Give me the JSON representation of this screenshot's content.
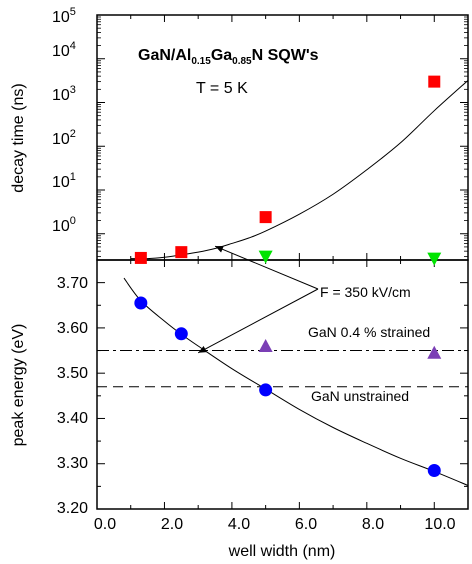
{
  "chart_data": [
    {
      "type": "scatter",
      "panel": "top",
      "ylabel": "decay time (ns)",
      "yscale": "log",
      "xlim": [
        0,
        11
      ],
      "ylim_log10": [
        -0.6,
        5
      ],
      "y_tick_mantissa": "10",
      "y_tick_exponents": [
        "0",
        "1",
        "2",
        "3",
        "4",
        "5"
      ],
      "title_parts": {
        "a": "GaN/Al",
        "b": "0.15",
        "c": "Ga",
        "d": "0.85",
        "e": "N SQW's"
      },
      "temperature_label": "T = 5 K",
      "series": [
        {
          "marker": "square",
          "color": "#ff0000",
          "x": [
            1.3,
            2.5,
            5.0,
            10.0
          ],
          "y": [
            0.28,
            0.38,
            2.4,
            3000
          ]
        },
        {
          "marker": "triangle-down",
          "color": "#00e400",
          "x": [
            5.0,
            10.0
          ],
          "y": [
            0.3,
            0.27
          ]
        }
      ],
      "fit_curve": {
        "x": [
          1.0,
          1.5,
          2.0,
          2.5,
          3.0,
          3.5,
          4.0,
          4.5,
          5.0,
          6.0,
          7.0,
          8.0,
          9.0,
          10.0,
          11.0
        ],
        "y": [
          0.27,
          0.27,
          0.29,
          0.33,
          0.38,
          0.46,
          0.6,
          0.8,
          1.15,
          2.8,
          8,
          29,
          120,
          650,
          3200
        ]
      }
    },
    {
      "type": "scatter",
      "panel": "bottom",
      "xlabel": "well width (nm)",
      "ylabel": "peak energy (eV)",
      "xlim": [
        0,
        11
      ],
      "ylim": [
        3.2,
        3.75
      ],
      "x_ticks": [
        "0.0",
        "2.0",
        "4.0",
        "6.0",
        "8.0",
        "10.0"
      ],
      "y_ticks": [
        "3.20",
        "3.30",
        "3.40",
        "3.50",
        "3.60",
        "3.70"
      ],
      "series": [
        {
          "marker": "circle",
          "color": "#0000ff",
          "x": [
            1.3,
            2.5,
            5.0,
            10.0
          ],
          "y": [
            3.655,
            3.587,
            3.463,
            3.285
          ]
        },
        {
          "marker": "triangle-up",
          "color": "#7b3fb5",
          "x": [
            5.0,
            10.0
          ],
          "y": [
            3.56,
            3.545
          ]
        }
      ],
      "fit_curve": {
        "x": [
          0.8,
          1.3,
          2.0,
          2.5,
          3.0,
          4.0,
          5.0,
          6.0,
          7.0,
          8.0,
          9.0,
          10.0,
          11.0
        ],
        "y": [
          3.71,
          3.66,
          3.615,
          3.586,
          3.56,
          3.51,
          3.465,
          3.42,
          3.38,
          3.345,
          3.312,
          3.283,
          3.252
        ]
      },
      "reference_lines": [
        {
          "label": "GaN 0.4 % strained",
          "y": 3.55,
          "style": "dash-dot"
        },
        {
          "label": "GaN unstrained",
          "y": 3.47,
          "style": "dashed"
        }
      ]
    }
  ],
  "annotation": {
    "text": "F = 350 kV/cm",
    "arrow_targets": [
      {
        "panel": "top",
        "x": 3.5,
        "y": 0.52
      },
      {
        "panel": "bottom",
        "x": 3.0,
        "y": 3.545
      }
    ]
  }
}
